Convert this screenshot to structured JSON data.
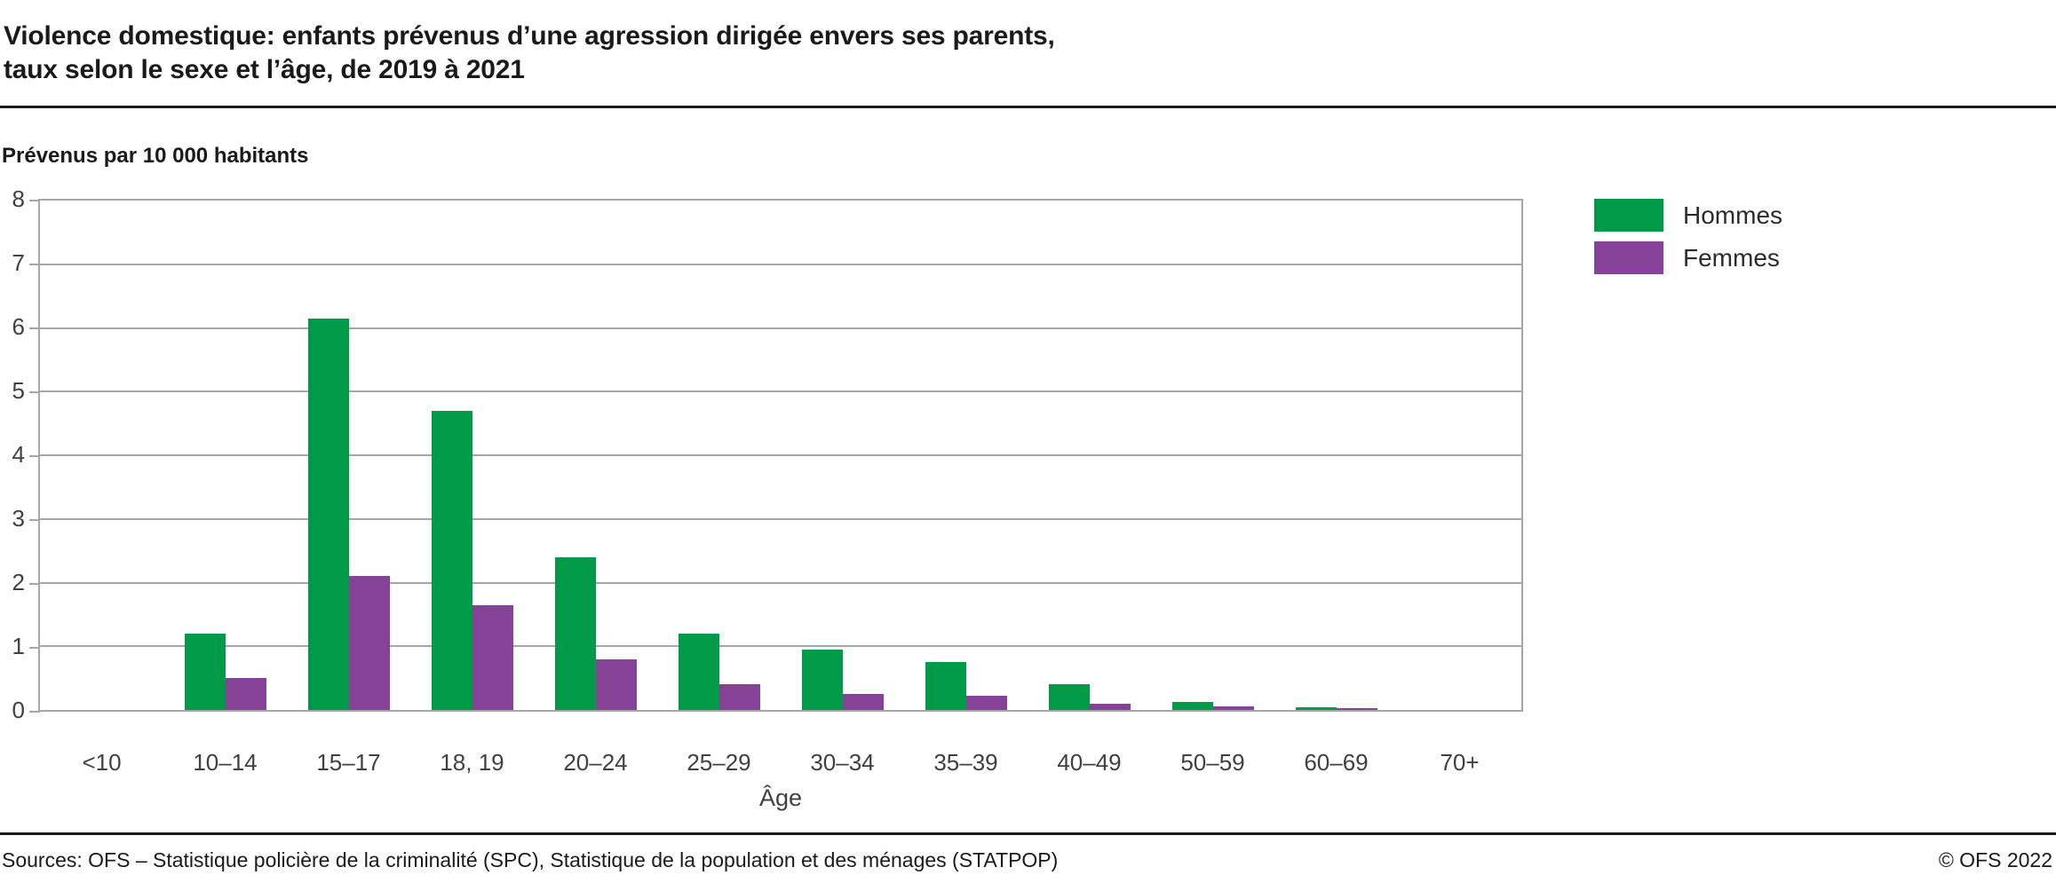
{
  "header": {
    "title_line1": "Violence domestique: enfants prévenus d’une agression dirigée envers ses parents,",
    "title_line2": "taux selon le sexe et l’âge, de 2019 à 2021"
  },
  "chart_data": {
    "type": "bar",
    "unit_label": "Prévenus par 10 000 habitants",
    "xlabel": "Âge",
    "ylim": [
      0,
      8
    ],
    "ytick_step": 1,
    "grid": true,
    "legend_position": "top-right",
    "categories": [
      "<10",
      "10–14",
      "15–17",
      "18, 19",
      "20–24",
      "25–29",
      "30–34",
      "35–39",
      "40–49",
      "50–59",
      "60–69",
      "70+"
    ],
    "series": [
      {
        "name": "Hommes",
        "color": "#009a49",
        "values": [
          0,
          1.2,
          6.15,
          4.7,
          2.4,
          1.2,
          0.95,
          0.75,
          0.4,
          0.12,
          0.04,
          0
        ]
      },
      {
        "name": "Femmes",
        "color": "#864296",
        "values": [
          0,
          0.5,
          2.1,
          1.65,
          0.8,
          0.4,
          0.25,
          0.22,
          0.1,
          0.05,
          0.03,
          0
        ]
      }
    ],
    "grid_color": "#a6a6a6"
  },
  "footer": {
    "sources": "Sources: OFS – Statistique policière de la criminalité (SPC), Statistique de la population et des ménages (STATPOP)",
    "copyright": "© OFS 2022"
  }
}
